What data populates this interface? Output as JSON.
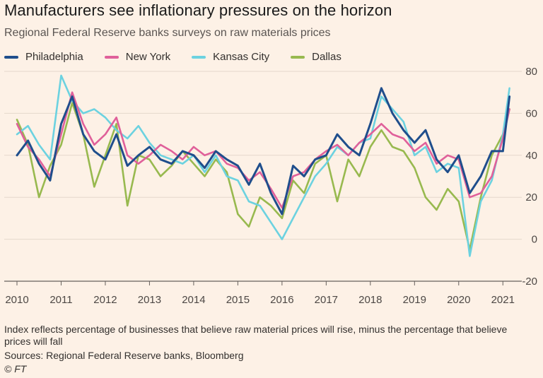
{
  "title": "Manufacturers see inflationary pressures on the horizon",
  "subtitle": "Regional Federal Reserve banks surveys on raw materials prices",
  "footnote": "Index reflects percentage of businesses that believe raw material prices will rise, minus the percentage that believe prices will fall",
  "source": "Sources: Regional Federal Reserve banks, Bloomberg",
  "credit": "© FT",
  "legend": [
    {
      "name": "Philadelphia",
      "color": "#1f4e8c"
    },
    {
      "name": "New York",
      "color": "#e0609a"
    },
    {
      "name": "Kansas City",
      "color": "#6cd2e0"
    },
    {
      "name": "Dallas",
      "color": "#98b94f"
    }
  ],
  "chart_data": {
    "type": "line",
    "title": "Manufacturers see inflationary pressures on the horizon",
    "subtitle": "Regional Federal Reserve banks surveys on raw materials prices",
    "xlabel": "",
    "ylabel": "",
    "xlim": [
      2010.0,
      2021.3
    ],
    "ylim": [
      -20,
      80
    ],
    "x_ticks": [
      "2010",
      "2011",
      "2012",
      "2013",
      "2014",
      "2015",
      "2016",
      "2017",
      "2018",
      "2019",
      "2020",
      "2021"
    ],
    "y_ticks": [
      80,
      60,
      40,
      20,
      0,
      -20
    ],
    "grid": "horizontal",
    "legend_position": "top",
    "series": [
      {
        "name": "Philadelphia",
        "color": "#1f4e8c",
        "x": [
          2010.0,
          2010.25,
          2010.5,
          2010.75,
          2011.0,
          2011.25,
          2011.5,
          2011.75,
          2012.0,
          2012.25,
          2012.5,
          2012.75,
          2013.0,
          2013.25,
          2013.5,
          2013.75,
          2014.0,
          2014.25,
          2014.5,
          2014.75,
          2015.0,
          2015.25,
          2015.5,
          2015.75,
          2016.0,
          2016.25,
          2016.5,
          2016.75,
          2017.0,
          2017.25,
          2017.5,
          2017.75,
          2018.0,
          2018.25,
          2018.5,
          2018.75,
          2019.0,
          2019.25,
          2019.5,
          2019.75,
          2020.0,
          2020.25,
          2020.5,
          2020.75,
          2021.0,
          2021.15
        ],
        "y": [
          40,
          47,
          36,
          28,
          55,
          68,
          50,
          42,
          38,
          50,
          35,
          40,
          44,
          38,
          36,
          42,
          40,
          34,
          42,
          38,
          35,
          26,
          36,
          22,
          12,
          35,
          30,
          38,
          40,
          50,
          44,
          40,
          55,
          72,
          60,
          52,
          46,
          52,
          38,
          32,
          40,
          22,
          30,
          42,
          42,
          68
        ]
      },
      {
        "name": "New York",
        "color": "#e0609a",
        "x": [
          2010.0,
          2010.25,
          2010.5,
          2010.75,
          2011.0,
          2011.25,
          2011.5,
          2011.75,
          2012.0,
          2012.25,
          2012.5,
          2012.75,
          2013.0,
          2013.25,
          2013.5,
          2013.75,
          2014.0,
          2014.25,
          2014.5,
          2014.75,
          2015.0,
          2015.25,
          2015.5,
          2015.75,
          2016.0,
          2016.25,
          2016.5,
          2016.75,
          2017.0,
          2017.25,
          2017.5,
          2017.75,
          2018.0,
          2018.25,
          2018.5,
          2018.75,
          2019.0,
          2019.25,
          2019.5,
          2019.75,
          2020.0,
          2020.25,
          2020.5,
          2020.75,
          2021.0,
          2021.15
        ],
        "y": [
          55,
          44,
          38,
          30,
          50,
          70,
          55,
          45,
          50,
          58,
          40,
          36,
          40,
          45,
          42,
          38,
          44,
          40,
          42,
          36,
          34,
          28,
          32,
          24,
          15,
          30,
          32,
          38,
          42,
          45,
          40,
          46,
          50,
          55,
          50,
          48,
          42,
          46,
          36,
          40,
          38,
          20,
          22,
          30,
          48,
          62
        ]
      },
      {
        "name": "Kansas City",
        "color": "#6cd2e0",
        "x": [
          2010.0,
          2010.25,
          2010.5,
          2010.75,
          2011.0,
          2011.25,
          2011.5,
          2011.75,
          2012.0,
          2012.25,
          2012.5,
          2012.75,
          2013.0,
          2013.25,
          2013.5,
          2013.75,
          2014.0,
          2014.25,
          2014.5,
          2014.75,
          2015.0,
          2015.25,
          2015.5,
          2015.75,
          2016.0,
          2016.25,
          2016.5,
          2016.75,
          2017.0,
          2017.25,
          2017.5,
          2017.75,
          2018.0,
          2018.25,
          2018.5,
          2018.75,
          2019.0,
          2019.25,
          2019.5,
          2019.75,
          2020.0,
          2020.25,
          2020.5,
          2020.75,
          2021.0,
          2021.15
        ],
        "y": [
          50,
          54,
          45,
          38,
          78,
          66,
          60,
          62,
          58,
          52,
          48,
          54,
          46,
          40,
          38,
          36,
          40,
          32,
          40,
          30,
          28,
          18,
          16,
          8,
          0,
          10,
          20,
          30,
          36,
          44,
          40,
          46,
          48,
          68,
          62,
          56,
          40,
          44,
          32,
          36,
          34,
          -8,
          18,
          28,
          50,
          72
        ]
      },
      {
        "name": "Dallas",
        "color": "#98b94f",
        "x": [
          2010.0,
          2010.25,
          2010.5,
          2010.75,
          2011.0,
          2011.25,
          2011.5,
          2011.75,
          2012.0,
          2012.25,
          2012.5,
          2012.75,
          2013.0,
          2013.25,
          2013.5,
          2013.75,
          2014.0,
          2014.25,
          2014.5,
          2014.75,
          2015.0,
          2015.25,
          2015.5,
          2015.75,
          2016.0,
          2016.25,
          2016.5,
          2016.75,
          2017.0,
          2017.25,
          2017.5,
          2017.75,
          2018.0,
          2018.25,
          2018.5,
          2018.75,
          2019.0,
          2019.25,
          2019.5,
          2019.75,
          2020.0,
          2020.25,
          2020.5,
          2020.75,
          2021.0,
          2021.15
        ],
        "y": [
          57,
          45,
          20,
          35,
          45,
          65,
          50,
          25,
          40,
          55,
          16,
          40,
          38,
          30,
          35,
          42,
          36,
          30,
          38,
          32,
          12,
          6,
          20,
          16,
          10,
          28,
          22,
          36,
          40,
          18,
          38,
          30,
          44,
          52,
          44,
          42,
          34,
          20,
          14,
          24,
          18,
          -5,
          20,
          40,
          50,
          62
        ]
      }
    ]
  }
}
